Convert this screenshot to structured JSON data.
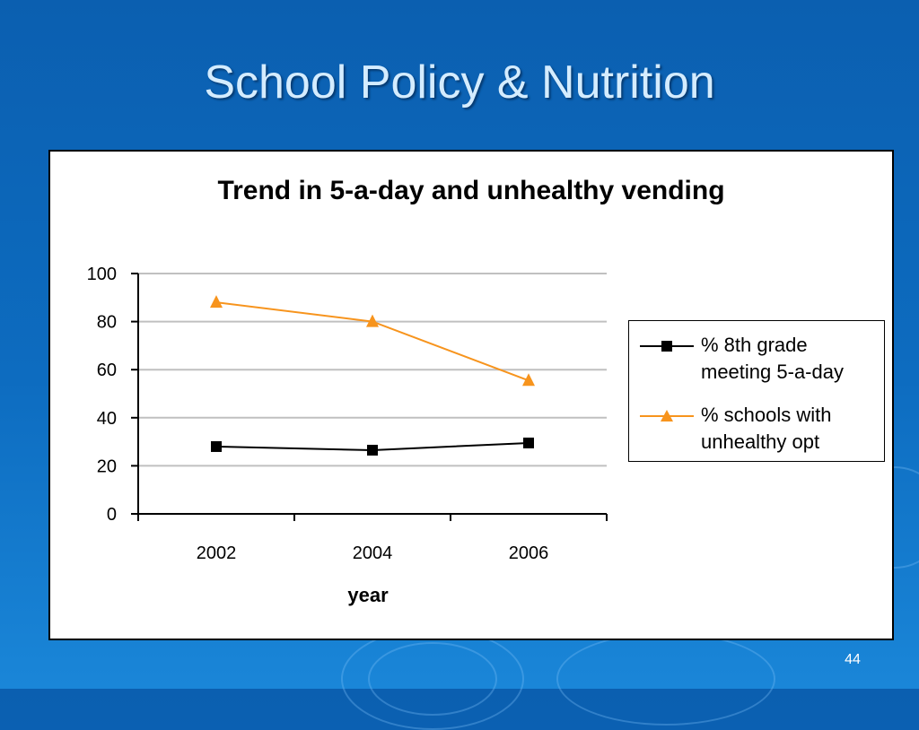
{
  "slide": {
    "title": "School Policy & Nutrition",
    "page_number": "44"
  },
  "colors": {
    "background": "#0d6cc0",
    "title_text": "#d4ecff",
    "series_black": "#000000",
    "series_orange": "#f7941d",
    "gridline": "#c0c0c0"
  },
  "chart_data": {
    "type": "line",
    "title": "Trend in 5-a-day and unhealthy vending",
    "xlabel": "year",
    "ylabel": "",
    "categories": [
      "2002",
      "2004",
      "2006"
    ],
    "ylim": [
      0,
      100
    ],
    "yticks": [
      0,
      20,
      40,
      60,
      80,
      100
    ],
    "grid": true,
    "legend_position": "right",
    "series": [
      {
        "name_lines": [
          "% 8th grade",
          "meeting 5-a-day"
        ],
        "values": [
          28,
          26.5,
          29.5
        ],
        "color": "#000000",
        "marker": "square"
      },
      {
        "name_lines": [
          "% schools with",
          "unhealthy opt"
        ],
        "values": [
          88,
          80,
          55.5
        ],
        "color": "#f7941d",
        "marker": "triangle"
      }
    ]
  }
}
